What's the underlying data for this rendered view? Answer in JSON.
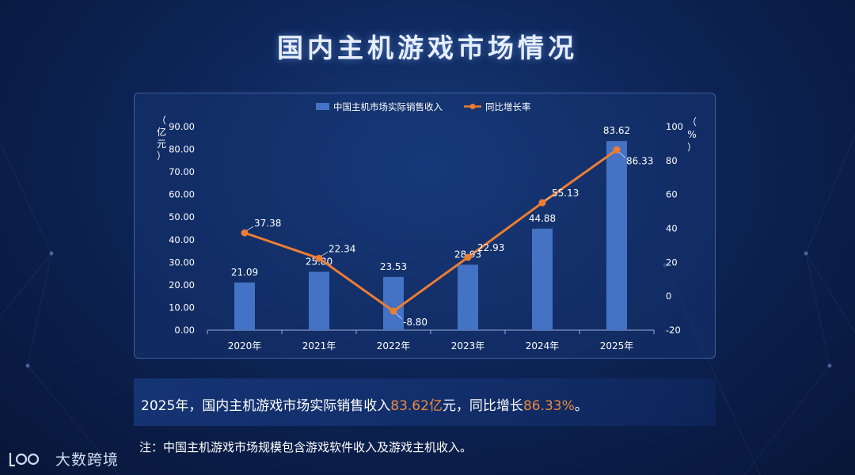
{
  "title": "国内主机游戏市场情况",
  "chart_data": {
    "type": "bar+line",
    "categories": [
      "2020年",
      "2021年",
      "2022年",
      "2023年",
      "2024年",
      "2025年"
    ],
    "series": [
      {
        "name": "中国主机市场实际销售收入",
        "type": "bar",
        "axis": "left",
        "values": [
          21.09,
          25.8,
          23.53,
          28.93,
          44.88,
          83.62
        ],
        "labels": [
          "21.09",
          "25.80",
          "23.53",
          "28.93",
          "44.88",
          "83.62"
        ],
        "color": "#4472c4"
      },
      {
        "name": "同比增长率",
        "type": "line",
        "axis": "right",
        "values": [
          37.38,
          22.34,
          -8.8,
          22.93,
          55.13,
          86.33
        ],
        "labels": [
          "37.38",
          "22.34",
          "-8.80",
          "22.93",
          "55.13",
          "86.33"
        ],
        "color": "#ed7d31"
      }
    ],
    "y_left": {
      "label": [
        "（",
        "亿",
        "元",
        "）"
      ],
      "range": [
        0,
        90
      ],
      "ticks": [
        "0.00",
        "10.00",
        "20.00",
        "30.00",
        "40.00",
        "50.00",
        "60.00",
        "70.00",
        "80.00",
        "90.00"
      ]
    },
    "y_right": {
      "label": [
        "（",
        "%",
        "）"
      ],
      "range": [
        -20,
        100
      ],
      "ticks": [
        "-20",
        "0",
        "20",
        "40",
        "60",
        "80",
        "100"
      ]
    },
    "legend": "top-center",
    "grid": false
  },
  "summary": {
    "prefix": "2025年，国内主机游戏市场实际销售收入",
    "revenue": "83.62亿",
    "middle": "元，同比增长",
    "growth": "86.33%",
    "suffix": "。"
  },
  "note": "注：中国主机游戏市场规模包含游戏软件收入及游戏主机收入。",
  "brand": {
    "name": "大数跨境",
    "mark": "icon"
  }
}
